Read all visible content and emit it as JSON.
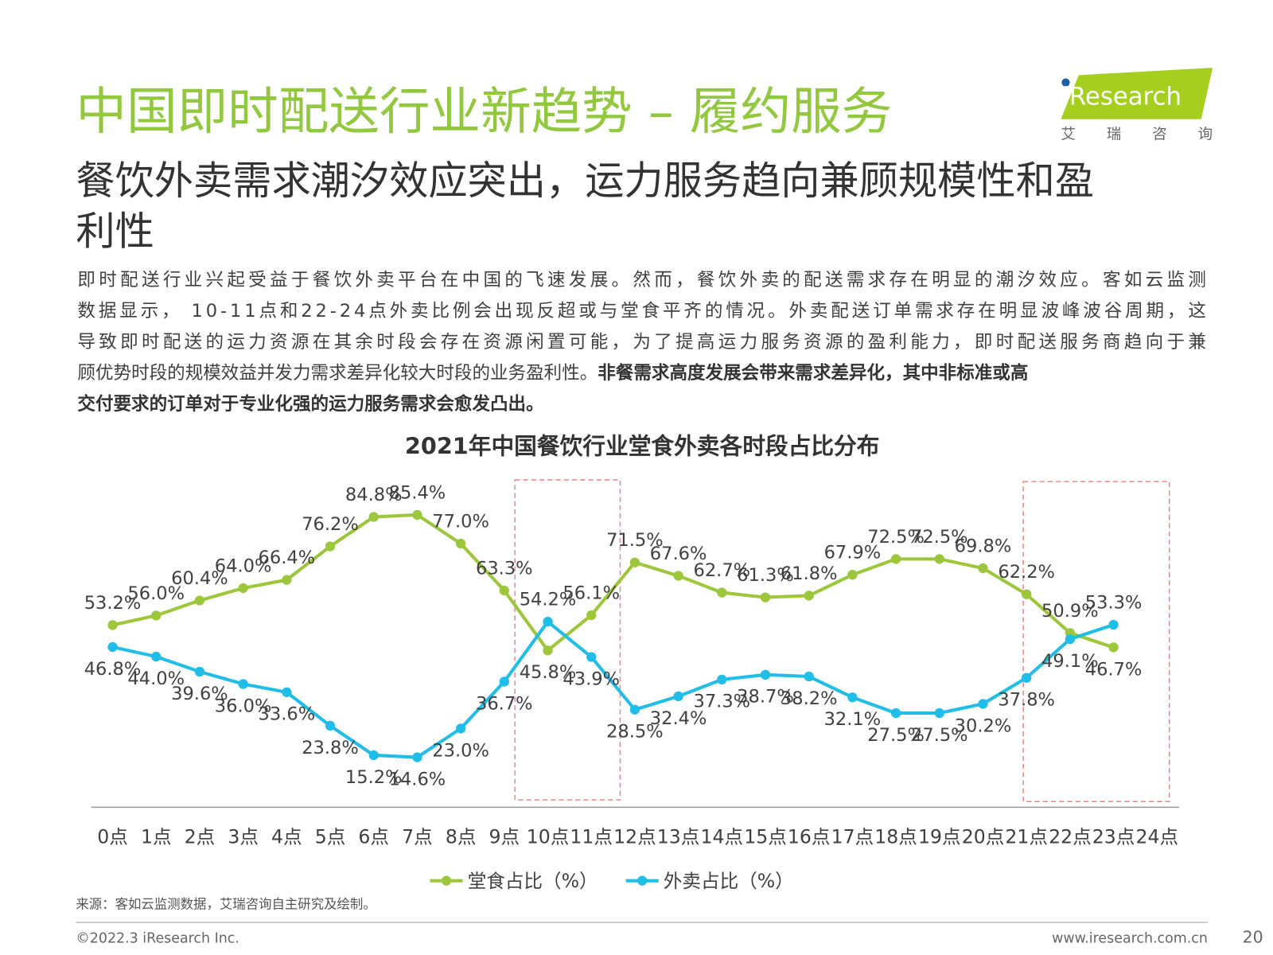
{
  "header": {
    "title": "中国即时配送行业新趋势 – 履约服务",
    "subtitle_lines": [
      "餐饮外卖需求潮汐效应突出，运力服务趋向兼顾规模性和盈",
      "利性"
    ]
  },
  "logo": {
    "brand": "iResearch",
    "tagline": "艾 瑞 咨 询"
  },
  "body": [
    "即时配送行业兴起受益于餐饮外卖平台在中国的飞速发展。然而，餐饮外卖的配送需求存在明显的潮汐效应。客如云监测",
    "数据显示， 10-11点和22-24点外卖比例会出现反超或与堂食平齐的情况。外卖配送订单需求存在明显波峰波谷周期，这",
    "导致即时配送的运力资源在其余时段会存在资源闲置可能，为了提高运力服务资源的盈利能力，即时配送服务商趋向于兼",
    "顾优势时段的规模效益并发力需求差异化较大时段的业务盈利性。"
  ],
  "body_bold": [
    "非餐需求高度发展会带来需求差异化，其中非标准或高",
    "交付要求的订单对于专业化强的运力服务需求会愈发凸出。"
  ],
  "chart_data": {
    "type": "line",
    "title": "2021年中国餐饮行业堂食外卖各时段占比分布",
    "categories": [
      "0点",
      "1点",
      "2点",
      "3点",
      "4点",
      "5点",
      "6点",
      "7点",
      "8点",
      "9点",
      "10点",
      "11点",
      "12点",
      "13点",
      "14点",
      "15点",
      "16点",
      "17点",
      "18点",
      "19点",
      "20点",
      "21点",
      "22点",
      "23点",
      "24点"
    ],
    "ylim": [
      0,
      100
    ],
    "legend": "bottom",
    "series": [
      {
        "name": "堂食占比（%）",
        "color": "#9dc73a",
        "values": [
          53.2,
          56.0,
          60.4,
          64.0,
          66.4,
          76.2,
          84.8,
          85.4,
          77.0,
          63.3,
          45.8,
          56.1,
          71.5,
          67.6,
          62.7,
          61.3,
          61.8,
          67.9,
          72.5,
          72.5,
          69.8,
          62.2,
          50.9,
          46.7,
          null
        ],
        "value_labels": [
          "53.2%",
          "56.0%",
          "60.4%",
          "64.0%",
          "66.4%",
          "76.2%",
          "84.8%",
          "85.4%",
          "77.0%",
          "63.3%",
          "45.8%",
          "56.1%",
          "71.5%",
          "67.6%",
          "62.7%",
          "61.3%",
          "61.8%",
          "67.9%",
          "72.5%",
          "72.5%",
          "69.8%",
          "62.2%",
          "50.9%",
          "46.7%",
          null
        ]
      },
      {
        "name": "外卖占比（%）",
        "color": "#1fbde8",
        "values": [
          46.8,
          44.0,
          39.6,
          36.0,
          33.6,
          23.8,
          15.2,
          14.6,
          23.0,
          36.7,
          54.2,
          43.9,
          28.5,
          32.4,
          37.3,
          38.7,
          38.2,
          32.1,
          27.5,
          27.5,
          30.2,
          37.8,
          49.1,
          53.3,
          null
        ],
        "value_labels": [
          "46.8%",
          "44.0%",
          "39.6%",
          "36.0%",
          "33.6%",
          "23.8%",
          "15.2%",
          "14.6%",
          "23.0%",
          "36.7%",
          "54.2%",
          "43.9%",
          "28.5%",
          "32.4%",
          "37.3%",
          "38.7%",
          "38.2%",
          "32.1%",
          "27.5%",
          "27.5%",
          "30.2%",
          "37.8%",
          "49.1%",
          "53.3%",
          null
        ]
      }
    ]
  },
  "source": "来源：客如云监测数据，艾瑞咨询自主研究及绘制。",
  "footer": {
    "copyright": "©2022.3 iResearch Inc.",
    "url": "www.iresearch.com.cn",
    "page": "20"
  }
}
